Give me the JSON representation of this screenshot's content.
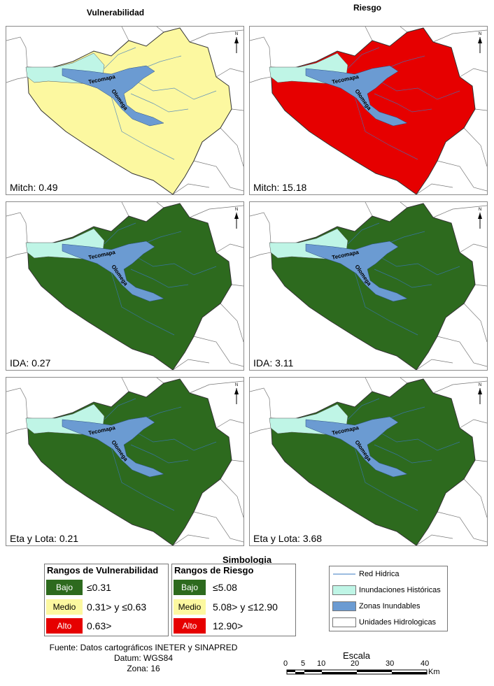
{
  "columns": {
    "left_title": "Vulnerabilidad",
    "right_title": "Riesgo"
  },
  "colors": {
    "yellow": "#fcf8a0",
    "red": "#e60000",
    "green": "#2d6a1e",
    "historic": "#bff5e6",
    "inundable": "#6b9bd2"
  },
  "places": {
    "town1": "Tecomapa",
    "town2": "Olomega"
  },
  "panels": [
    {
      "label": "Mitch: 0.49",
      "fill": "yellow"
    },
    {
      "label": "Mitch: 15.18",
      "fill": "red"
    },
    {
      "label": "IDA: 0.27",
      "fill": "green"
    },
    {
      "label": "IDA: 3.11",
      "fill": "green"
    },
    {
      "label": "Eta y Lota: 0.21",
      "fill": "green"
    },
    {
      "label": "Eta y Lota: 3.68",
      "fill": "green"
    }
  ],
  "north_label": "N",
  "legend": {
    "title": "Simbologia",
    "vulnerability": {
      "heading": "Rangos de Vulnerabilidad",
      "rows": [
        {
          "class": "Bajo",
          "range": "≤0.31"
        },
        {
          "class": "Medio",
          "range": "0.31> y ≤0.63"
        },
        {
          "class": "Alto",
          "range": "0.63>"
        }
      ]
    },
    "risk": {
      "heading": "Rangos de Riesgo",
      "rows": [
        {
          "class": "Bajo",
          "range": "≤5.08"
        },
        {
          "class": "Medio",
          "range": "5.08> y ≤12.90"
        },
        {
          "class": "Alto",
          "range": "12.90>"
        }
      ]
    },
    "symbols": [
      {
        "label": "Red Hidrica"
      },
      {
        "label": "Inundaciones Históricas"
      },
      {
        "label": "Zonas Inundables"
      },
      {
        "label": "Unidades Hidrologicas"
      }
    ]
  },
  "source": {
    "line1": "Fuente: Datos cartográficos INETER y SINAPRED",
    "line2": "Datum: WGS84",
    "line3": "Zona: 16"
  },
  "scale": {
    "title": "Escala",
    "ticks": [
      "0",
      "5",
      "10",
      "20",
      "30",
      "40"
    ],
    "unit": "Km"
  }
}
